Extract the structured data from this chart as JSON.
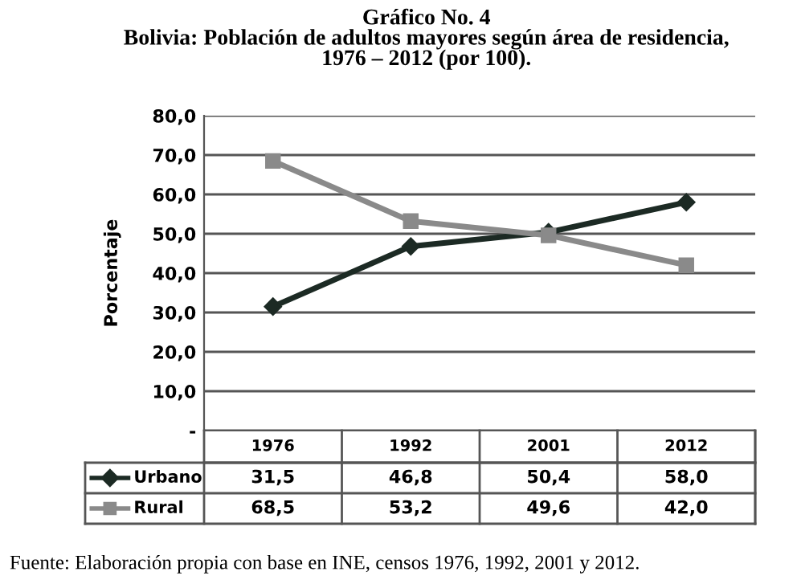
{
  "chart_data": {
    "type": "line",
    "title": "Gráfico No. 4\nBolivia: Población de adultos mayores según área de residencia,\n1976 – 2012 (por 100).",
    "ylabel": "Porcentaje",
    "categories": [
      "1976",
      "1992",
      "2001",
      "2012"
    ],
    "series": [
      {
        "name": "Urbano",
        "color": "#1c2a24",
        "marker": "diamond",
        "values": [
          31.5,
          46.8,
          50.4,
          58.0
        ],
        "value_labels": [
          "31,5",
          "46,8",
          "50,4",
          "58,0"
        ]
      },
      {
        "name": "Rural",
        "color": "#8a8a8a",
        "marker": "square",
        "values": [
          68.5,
          53.2,
          49.6,
          42.0
        ],
        "value_labels": [
          "68,5",
          "53,2",
          "49,6",
          "42,0"
        ]
      }
    ],
    "ylim": [
      0,
      80
    ],
    "yticks": [
      {
        "value": 0,
        "label": "-"
      },
      {
        "value": 10,
        "label": "10,0"
      },
      {
        "value": 20,
        "label": "20,0"
      },
      {
        "value": 30,
        "label": "30,0"
      },
      {
        "value": 40,
        "label": "40,0"
      },
      {
        "value": 50,
        "label": "50,0"
      },
      {
        "value": 60,
        "label": "60,0"
      },
      {
        "value": 70,
        "label": "70,0"
      },
      {
        "value": 80,
        "label": "80,0"
      }
    ],
    "grid": "y",
    "legend": "bottom left",
    "line_style": "solid",
    "annotations": [
      "Fuente: Elaboración propia con base en INE, censos 1976, 1992, 2001 y 2012."
    ]
  }
}
